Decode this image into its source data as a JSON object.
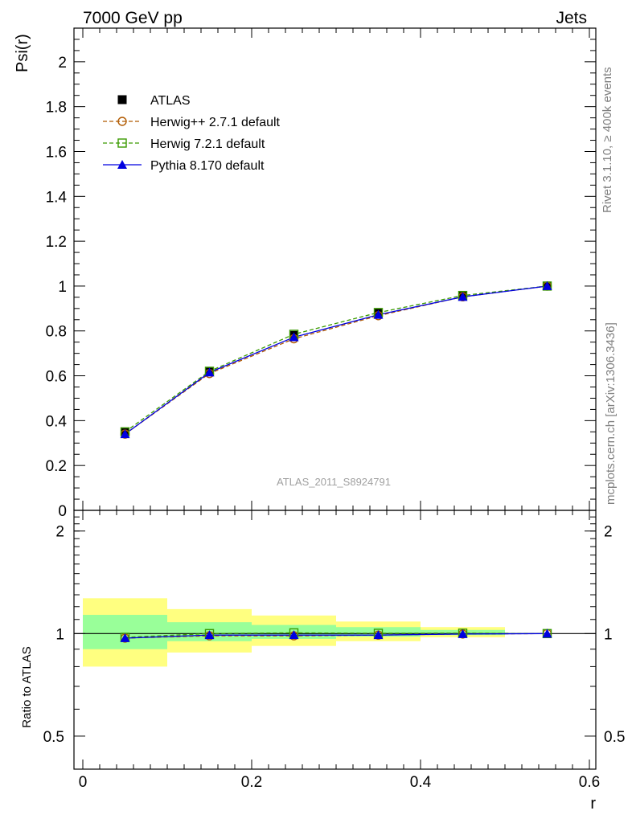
{
  "header": {
    "left": "7000 GeV pp",
    "right": "Jets"
  },
  "side_labels": {
    "rivet": "Rivet 3.1.10, ≥ 400k events",
    "mcplots": "mcplots.cern.ch [arXiv:1306.3436]"
  },
  "watermark": "ATLAS_2011_S8924791",
  "chart_data": [
    {
      "type": "line",
      "panel": "main",
      "ylabel": "Psi(r)",
      "xlabel": "",
      "xlim": [
        0,
        0.6
      ],
      "ylim": [
        0,
        2.15
      ],
      "yticks": [
        0,
        0.2,
        0.4,
        0.6,
        0.8,
        1,
        1.2,
        1.4,
        1.6,
        1.8,
        2
      ],
      "ytick_labels": [
        "0",
        "0.2",
        "0.4",
        "0.6",
        "0.8",
        "1",
        "1.2",
        "1.4",
        "1.6",
        "1.8",
        "2"
      ],
      "x": [
        0.05,
        0.15,
        0.25,
        0.35,
        0.45,
        0.55
      ],
      "series": [
        {
          "name": "ATLAS",
          "values": [
            0.35,
            0.62,
            0.78,
            0.88,
            0.955,
            1.0
          ],
          "color": "#000000",
          "marker": "filled-square",
          "line": "none"
        },
        {
          "name": "Herwig++ 2.7.1 default",
          "values": [
            0.34,
            0.61,
            0.765,
            0.868,
            0.952,
            1.0
          ],
          "color": "#b15a00",
          "marker": "open-circle",
          "line": "dashed"
        },
        {
          "name": "Herwig 7.2.1 default",
          "values": [
            0.35,
            0.62,
            0.785,
            0.882,
            0.958,
            1.0
          ],
          "color": "#3a9a00",
          "marker": "open-square",
          "line": "dashed"
        },
        {
          "name": "Pythia 8.170 default",
          "values": [
            0.34,
            0.615,
            0.772,
            0.872,
            0.952,
            1.0
          ],
          "color": "#0000e0",
          "marker": "filled-triangle",
          "line": "solid"
        }
      ],
      "legend_position": "top-left"
    },
    {
      "type": "line",
      "panel": "ratio",
      "ylabel": "Ratio to ATLAS",
      "xlabel": "r",
      "xlim": [
        0,
        0.6
      ],
      "ylim": [
        0.4,
        2.3
      ],
      "scale": "log",
      "yticks": [
        0.5,
        1,
        2
      ],
      "ytick_labels": [
        "0.5",
        "1",
        "2"
      ],
      "xticks": [
        0,
        0.2,
        0.4,
        0.6
      ],
      "xtick_labels": [
        "0",
        "0.2",
        "0.4",
        "0.6"
      ],
      "x": [
        0.05,
        0.15,
        0.25,
        0.35,
        0.45,
        0.55
      ],
      "bands": [
        {
          "name": "",
          "color": "#ffff80",
          "bins": [
            [
              0,
              0.1
            ],
            [
              0.1,
              0.2
            ],
            [
              0.2,
              0.3
            ],
            [
              0.3,
              0.4
            ],
            [
              0.4,
              0.5
            ]
          ],
          "low": [
            0.8,
            0.88,
            0.92,
            0.95,
            0.975
          ],
          "high": [
            1.27,
            1.18,
            1.13,
            1.085,
            1.045
          ]
        },
        {
          "name": "",
          "color": "#99ff99",
          "bins": [
            [
              0,
              0.1
            ],
            [
              0.1,
              0.2
            ],
            [
              0.2,
              0.3
            ],
            [
              0.3,
              0.4
            ],
            [
              0.4,
              0.5
            ]
          ],
          "low": [
            0.9,
            0.95,
            0.965,
            0.98,
            0.99
          ],
          "high": [
            1.135,
            1.08,
            1.06,
            1.045,
            1.025
          ]
        }
      ],
      "series": [
        {
          "name": "Herwig++ 2.7.1 default",
          "values": [
            0.97,
            0.985,
            0.985,
            0.99,
            0.997,
            1.0
          ],
          "color": "#b15a00",
          "marker": "open-circle",
          "line": "dashed"
        },
        {
          "name": "Herwig 7.2.1 default",
          "values": [
            0.975,
            1.0,
            1.005,
            1.002,
            1.003,
            1.0
          ],
          "color": "#3a9a00",
          "marker": "open-square",
          "line": "dashed"
        },
        {
          "name": "Pythia 8.170 default",
          "values": [
            0.97,
            0.99,
            0.99,
            0.99,
            0.997,
            1.0
          ],
          "color": "#0000e0",
          "marker": "filled-triangle",
          "line": "solid"
        }
      ]
    }
  ]
}
